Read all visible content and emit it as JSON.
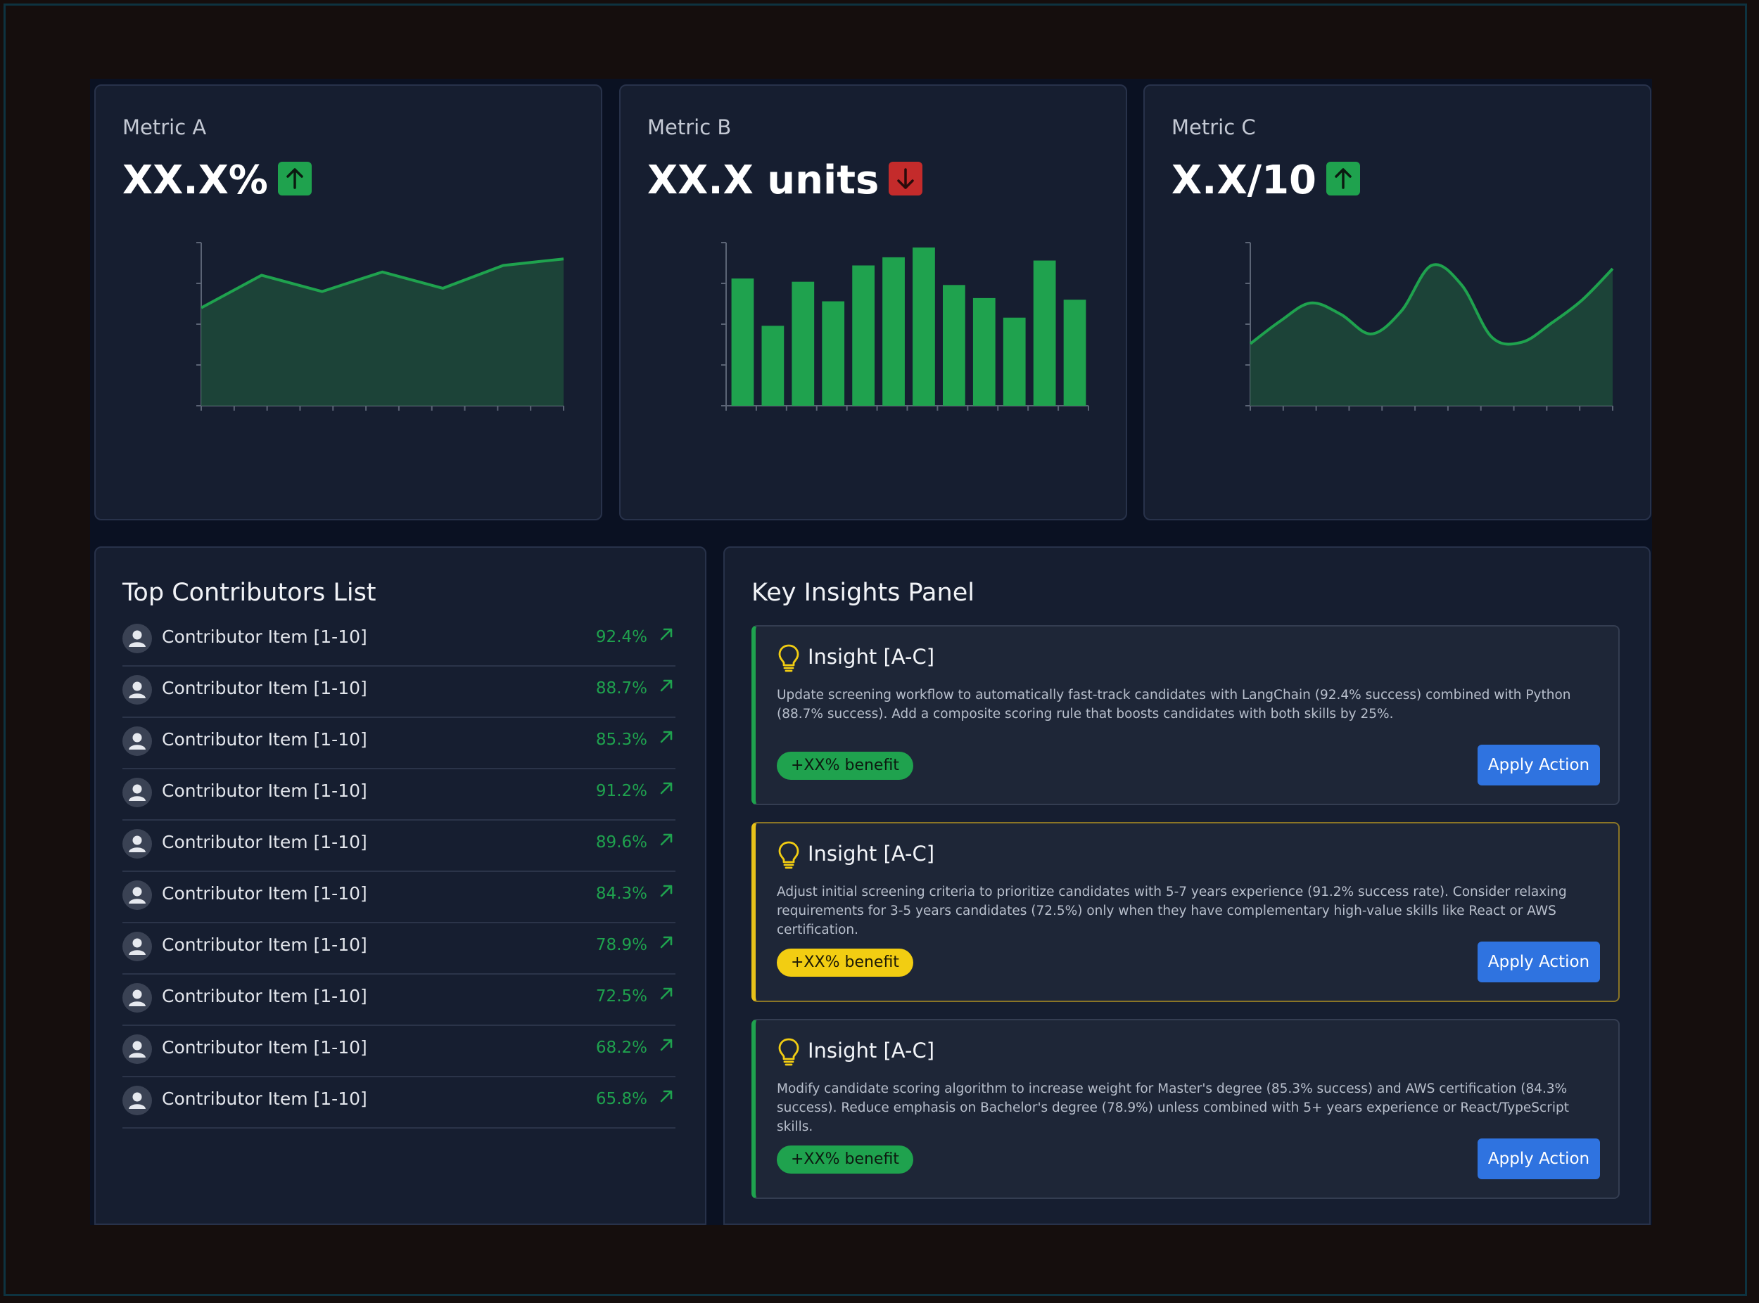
{
  "colors": {
    "positive": "#1fa24e",
    "negative": "#c42b2b",
    "warning": "#f2cd12",
    "action": "#2f73e0",
    "card_bg": "#161e30",
    "page_bg": "#0a1122"
  },
  "metrics": [
    {
      "label": "Metric A",
      "value": "XX.X%",
      "trend": "up",
      "trend_icon": "arrow-up-icon",
      "chart_data": {
        "type": "area",
        "x": [
          0,
          1,
          2,
          3,
          4,
          5,
          6
        ],
        "values": [
          3.0,
          4.0,
          3.5,
          4.1,
          3.6,
          4.3,
          4.5
        ],
        "ylim": [
          0,
          5
        ],
        "xlabel": "",
        "ylabel": "",
        "grid": false
      }
    },
    {
      "label": "Metric B",
      "value": "XX.X units",
      "trend": "down",
      "trend_icon": "arrow-down-icon",
      "chart_data": {
        "type": "bar",
        "categories": [
          "1",
          "2",
          "3",
          "4",
          "5",
          "6",
          "7",
          "8",
          "9",
          "10",
          "11",
          "12"
        ],
        "values": [
          7.8,
          4.9,
          7.6,
          6.4,
          8.6,
          9.1,
          9.7,
          7.4,
          6.6,
          5.4,
          8.9,
          6.5
        ],
        "ylim": [
          0,
          10
        ],
        "xlabel": "",
        "ylabel": "",
        "grid": false
      }
    },
    {
      "label": "Metric C",
      "value": "X.X/10",
      "trend": "up",
      "trend_icon": "arrow-up-icon",
      "chart_data": {
        "type": "area",
        "x": [
          0,
          1,
          2,
          3,
          4,
          5,
          6,
          7,
          8,
          9,
          10,
          11,
          12
        ],
        "values": [
          3.8,
          5.2,
          6.3,
          5.6,
          4.4,
          5.8,
          8.6,
          7.4,
          4.2,
          3.9,
          5.1,
          6.5,
          8.4
        ],
        "ylim": [
          0,
          10
        ],
        "xlabel": "",
        "ylabel": "",
        "grid": false
      }
    }
  ],
  "contributors": {
    "title": "Top Contributors List",
    "items": [
      {
        "name": "Contributor Item [1-10]",
        "value": "92.4%"
      },
      {
        "name": "Contributor Item [1-10]",
        "value": "88.7%"
      },
      {
        "name": "Contributor Item [1-10]",
        "value": "85.3%"
      },
      {
        "name": "Contributor Item [1-10]",
        "value": "91.2%"
      },
      {
        "name": "Contributor Item [1-10]",
        "value": "89.6%"
      },
      {
        "name": "Contributor Item [1-10]",
        "value": "84.3%"
      },
      {
        "name": "Contributor Item [1-10]",
        "value": "78.9%"
      },
      {
        "name": "Contributor Item [1-10]",
        "value": "72.5%"
      },
      {
        "name": "Contributor Item [1-10]",
        "value": "68.2%"
      },
      {
        "name": "Contributor Item [1-10]",
        "value": "65.8%"
      }
    ]
  },
  "insights": {
    "title": "Key Insights Panel",
    "items": [
      {
        "title": "Insight [A-C]",
        "text": "Update screening workflow to automatically fast-track candidates with LangChain (92.4% success) combined with Python (88.7% success). Add a composite scoring rule that boosts candidates with both skills by 25%.",
        "benefit": "+XX% benefit",
        "accent": "green",
        "action_label": "Apply Action"
      },
      {
        "title": "Insight [A-C]",
        "text": "Adjust initial screening criteria to prioritize candidates with 5-7 years experience (91.2% success rate). Consider relaxing requirements for 3-5 years candidates (72.5%) only when they have complementary high-value skills like React or AWS certification.",
        "benefit": "+XX% benefit",
        "accent": "yellow",
        "action_label": "Apply Action"
      },
      {
        "title": "Insight [A-C]",
        "text": "Modify candidate scoring algorithm to increase weight for Master's degree (85.3% success) and AWS certification (84.3% success). Reduce emphasis on Bachelor's degree (78.9%) unless combined with 5+ years experience or React/TypeScript skills.",
        "benefit": "+XX% benefit",
        "accent": "green",
        "action_label": "Apply Action"
      }
    ]
  }
}
